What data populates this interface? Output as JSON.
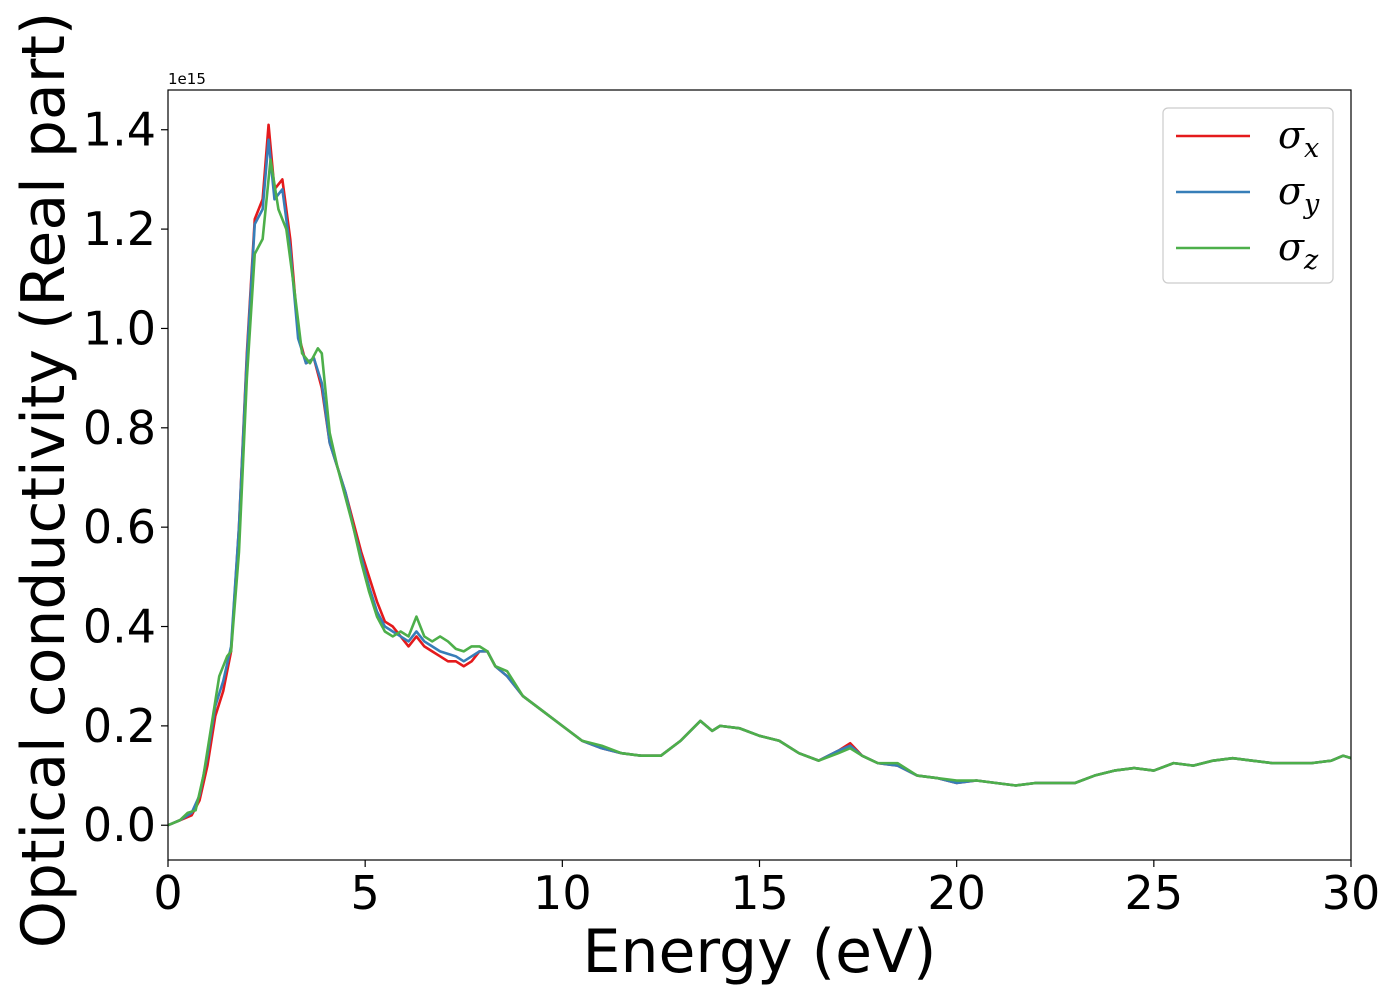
{
  "chart_data": {
    "type": "line",
    "xlabel": "Energy (eV)",
    "ylabel": "Optical conductivity (Real part)",
    "y_offset_label": "1e15",
    "xlim": [
      0,
      30
    ],
    "ylim": [
      -0.07,
      1.48
    ],
    "x_ticks": [
      0,
      5,
      10,
      15,
      20,
      25,
      30
    ],
    "x_tick_labels": [
      "0",
      "5",
      "10",
      "15",
      "20",
      "25",
      "30"
    ],
    "y_ticks": [
      0.0,
      0.2,
      0.4,
      0.6,
      0.8,
      1.0,
      1.2,
      1.4
    ],
    "y_tick_labels": [
      "0.0",
      "0.2",
      "0.4",
      "0.6",
      "0.8",
      "1.0",
      "1.2",
      "1.4"
    ],
    "grid": false,
    "legend_position": "top-right",
    "series": [
      {
        "name": "σx",
        "symbol": "σ",
        "subscript": "x",
        "color": "#e41a1c",
        "x": [
          0,
          0.3,
          0.6,
          0.8,
          1.0,
          1.2,
          1.4,
          1.6,
          1.8,
          2.0,
          2.2,
          2.4,
          2.55,
          2.7,
          2.9,
          3.1,
          3.3,
          3.5,
          3.7,
          3.9,
          4.1,
          4.3,
          4.5,
          4.7,
          4.9,
          5.1,
          5.3,
          5.5,
          5.7,
          5.9,
          6.1,
          6.3,
          6.5,
          6.7,
          6.9,
          7.1,
          7.3,
          7.5,
          7.7,
          7.9,
          8.1,
          8.3,
          8.6,
          9.0,
          9.5,
          10.0,
          10.5,
          11.0,
          11.5,
          12.0,
          12.5,
          13.0,
          13.5,
          13.8,
          14.0,
          14.5,
          15.0,
          15.5,
          16.0,
          16.5,
          17.0,
          17.3,
          17.6,
          18.0,
          18.5,
          19.0,
          19.5,
          20.0,
          20.5,
          21.0,
          21.5,
          22.0,
          22.5,
          23.0,
          23.5,
          24.0,
          24.5,
          25.0,
          25.5,
          26.0,
          26.5,
          27.0,
          27.5,
          28.0,
          28.5,
          29.0,
          29.5,
          29.8,
          30.0
        ],
        "y": [
          0.0,
          0.01,
          0.02,
          0.05,
          0.12,
          0.22,
          0.27,
          0.35,
          0.6,
          0.95,
          1.22,
          1.26,
          1.41,
          1.28,
          1.3,
          1.18,
          0.99,
          0.93,
          0.94,
          0.88,
          0.77,
          0.72,
          0.67,
          0.61,
          0.55,
          0.5,
          0.45,
          0.41,
          0.4,
          0.38,
          0.36,
          0.38,
          0.36,
          0.35,
          0.34,
          0.33,
          0.33,
          0.32,
          0.33,
          0.35,
          0.35,
          0.32,
          0.3,
          0.26,
          0.23,
          0.2,
          0.17,
          0.155,
          0.145,
          0.14,
          0.14,
          0.17,
          0.21,
          0.19,
          0.2,
          0.195,
          0.18,
          0.17,
          0.145,
          0.13,
          0.15,
          0.165,
          0.14,
          0.125,
          0.12,
          0.1,
          0.095,
          0.085,
          0.09,
          0.085,
          0.08,
          0.085,
          0.085,
          0.085,
          0.1,
          0.11,
          0.115,
          0.11,
          0.125,
          0.12,
          0.13,
          0.135,
          0.13,
          0.125,
          0.125,
          0.125,
          0.13,
          0.14,
          0.135
        ]
      },
      {
        "name": "σy",
        "symbol": "σ",
        "subscript": "y",
        "color": "#377eb8",
        "x": [
          0,
          0.3,
          0.6,
          0.8,
          1.0,
          1.2,
          1.4,
          1.6,
          1.8,
          2.0,
          2.2,
          2.4,
          2.55,
          2.7,
          2.9,
          3.1,
          3.3,
          3.5,
          3.7,
          3.9,
          4.1,
          4.3,
          4.5,
          4.7,
          4.9,
          5.1,
          5.3,
          5.5,
          5.7,
          5.9,
          6.1,
          6.3,
          6.5,
          6.7,
          6.9,
          7.1,
          7.3,
          7.5,
          7.7,
          7.9,
          8.1,
          8.3,
          8.6,
          9.0,
          9.5,
          10.0,
          10.5,
          11.0,
          11.5,
          12.0,
          12.5,
          13.0,
          13.5,
          13.8,
          14.0,
          14.5,
          15.0,
          15.5,
          16.0,
          16.5,
          17.0,
          17.3,
          17.6,
          18.0,
          18.5,
          19.0,
          19.5,
          20.0,
          20.5,
          21.0,
          21.5,
          22.0,
          22.5,
          23.0,
          23.5,
          24.0,
          24.5,
          25.0,
          25.5,
          26.0,
          26.5,
          27.0,
          27.5,
          28.0,
          28.5,
          29.0,
          29.5,
          29.8,
          30.0
        ],
        "y": [
          0.0,
          0.01,
          0.025,
          0.06,
          0.14,
          0.24,
          0.29,
          0.36,
          0.6,
          0.94,
          1.21,
          1.24,
          1.38,
          1.26,
          1.28,
          1.16,
          0.98,
          0.93,
          0.94,
          0.89,
          0.77,
          0.72,
          0.67,
          0.6,
          0.54,
          0.48,
          0.43,
          0.4,
          0.39,
          0.38,
          0.37,
          0.39,
          0.37,
          0.36,
          0.35,
          0.345,
          0.34,
          0.33,
          0.34,
          0.35,
          0.35,
          0.32,
          0.3,
          0.26,
          0.23,
          0.2,
          0.17,
          0.155,
          0.145,
          0.14,
          0.14,
          0.17,
          0.21,
          0.19,
          0.2,
          0.195,
          0.18,
          0.17,
          0.145,
          0.13,
          0.15,
          0.16,
          0.14,
          0.125,
          0.12,
          0.1,
          0.095,
          0.085,
          0.09,
          0.085,
          0.08,
          0.085,
          0.085,
          0.085,
          0.1,
          0.11,
          0.115,
          0.11,
          0.125,
          0.12,
          0.13,
          0.135,
          0.13,
          0.125,
          0.125,
          0.125,
          0.13,
          0.14,
          0.135
        ]
      },
      {
        "name": "σz",
        "symbol": "σ",
        "subscript": "z",
        "color": "#4daf4a",
        "x": [
          0,
          0.3,
          0.5,
          0.7,
          0.9,
          1.1,
          1.3,
          1.5,
          1.6,
          1.8,
          2.0,
          2.2,
          2.4,
          2.6,
          2.8,
          3.0,
          3.2,
          3.4,
          3.6,
          3.8,
          3.9,
          4.1,
          4.3,
          4.5,
          4.7,
          4.9,
          5.1,
          5.3,
          5.5,
          5.7,
          5.9,
          6.1,
          6.3,
          6.5,
          6.7,
          6.9,
          7.1,
          7.3,
          7.5,
          7.7,
          7.9,
          8.1,
          8.3,
          8.6,
          9.0,
          9.5,
          10.0,
          10.5,
          11.0,
          11.5,
          12.0,
          12.5,
          13.0,
          13.5,
          13.8,
          14.0,
          14.5,
          15.0,
          15.5,
          16.0,
          16.5,
          17.0,
          17.3,
          17.6,
          18.0,
          18.5,
          19.0,
          19.5,
          20.0,
          20.5,
          21.0,
          21.5,
          22.0,
          22.5,
          23.0,
          23.5,
          24.0,
          24.5,
          25.0,
          25.5,
          26.0,
          26.5,
          27.0,
          27.5,
          28.0,
          28.5,
          29.0,
          29.5,
          29.8,
          30.0
        ],
        "y": [
          0.0,
          0.01,
          0.025,
          0.03,
          0.1,
          0.2,
          0.3,
          0.34,
          0.35,
          0.55,
          0.9,
          1.15,
          1.18,
          1.34,
          1.24,
          1.2,
          1.08,
          0.95,
          0.93,
          0.96,
          0.95,
          0.79,
          0.72,
          0.66,
          0.6,
          0.53,
          0.47,
          0.42,
          0.39,
          0.38,
          0.39,
          0.38,
          0.42,
          0.38,
          0.37,
          0.38,
          0.37,
          0.355,
          0.35,
          0.36,
          0.36,
          0.35,
          0.32,
          0.31,
          0.26,
          0.23,
          0.2,
          0.17,
          0.16,
          0.145,
          0.14,
          0.14,
          0.17,
          0.21,
          0.19,
          0.2,
          0.195,
          0.18,
          0.17,
          0.145,
          0.13,
          0.145,
          0.155,
          0.14,
          0.125,
          0.125,
          0.1,
          0.095,
          0.09,
          0.09,
          0.085,
          0.08,
          0.085,
          0.085,
          0.085,
          0.1,
          0.11,
          0.115,
          0.11,
          0.125,
          0.12,
          0.13,
          0.135,
          0.13,
          0.125,
          0.125,
          0.125,
          0.13,
          0.14,
          0.135
        ]
      }
    ]
  }
}
